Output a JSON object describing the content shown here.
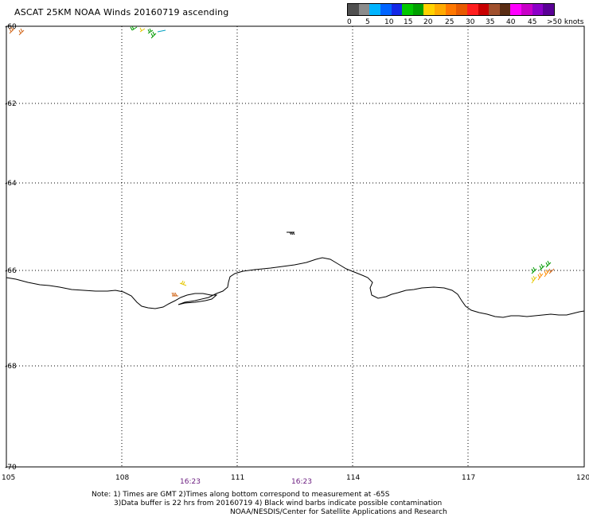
{
  "title": "ASCAT 25KM NOAA Winds 20160719 ascending",
  "legend": {
    "colors": [
      "#505050",
      "#8c8c8c",
      "#00b4ff",
      "#0064ff",
      "#1428e6",
      "#00c800",
      "#00a000",
      "#ffd200",
      "#ffaa00",
      "#ff7800",
      "#e85a00",
      "#ff1e1e",
      "#c80000",
      "#a0502d",
      "#5a2d14",
      "#ff00ff",
      "#c800c8",
      "#8c00c8",
      "#5a0096"
    ],
    "labels": [
      "0",
      "5",
      "10",
      "15",
      "20",
      "25",
      "30",
      "35",
      "40",
      "45",
      ">50 knots"
    ]
  },
  "axes": {
    "lat_labels": [
      "-60",
      "-62",
      "-64",
      "-66",
      "-68",
      "-70"
    ],
    "lon_labels": [
      "105",
      "108",
      "111",
      "114",
      "117",
      "120"
    ]
  },
  "times": [
    "16:23",
    "16:23"
  ],
  "notes": [
    "Note: 1) Times are GMT 2)Times along bottom correspond to measurement at -65S",
    "3)Data buffer is 22 hrs from 20160719 4) Black wind barbs indicate possible contamination",
    "NOAA/NESDIS/Center for Satellite Applications and Research"
  ],
  "barb_colors": {
    "dark_orange": "#d2691e",
    "green": "#009a00",
    "yellow": "#e6c800",
    "orange": "#ff8c00",
    "black": "#000000"
  }
}
